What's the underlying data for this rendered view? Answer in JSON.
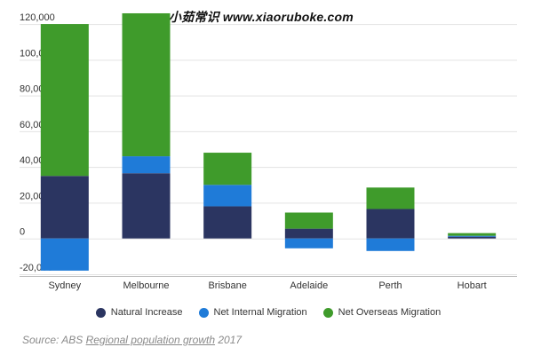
{
  "watermark": "小茹常识 www.xiaoruboke.com",
  "chart_data": {
    "type": "bar",
    "stacked": true,
    "categories": [
      "Sydney",
      "Melbourne",
      "Brisbane",
      "Adelaide",
      "Perth",
      "Hobart"
    ],
    "series": [
      {
        "name": "Natural Increase",
        "color": "#2b3561",
        "values": [
          35000,
          36500,
          18000,
          5500,
          16500,
          1000
        ]
      },
      {
        "name": "Net Internal Migration",
        "color": "#1f7bd8",
        "values": [
          -18000,
          9500,
          12000,
          -5500,
          -7000,
          500
        ]
      },
      {
        "name": "Net Overseas Migration",
        "color": "#3f9b2b",
        "values": [
          85000,
          80000,
          18000,
          9000,
          12000,
          1500
        ]
      }
    ],
    "yticks": [
      "120,000",
      "100,000",
      "80,000",
      "60,000",
      "40,000",
      "20,000",
      "0",
      "-20,000"
    ],
    "ylim": [
      -22000,
      125000
    ],
    "grid": true,
    "legend_position": "bottom"
  },
  "source": {
    "prefix": "Source: ABS ",
    "link": "Regional population growth",
    "suffix": " 2017"
  }
}
